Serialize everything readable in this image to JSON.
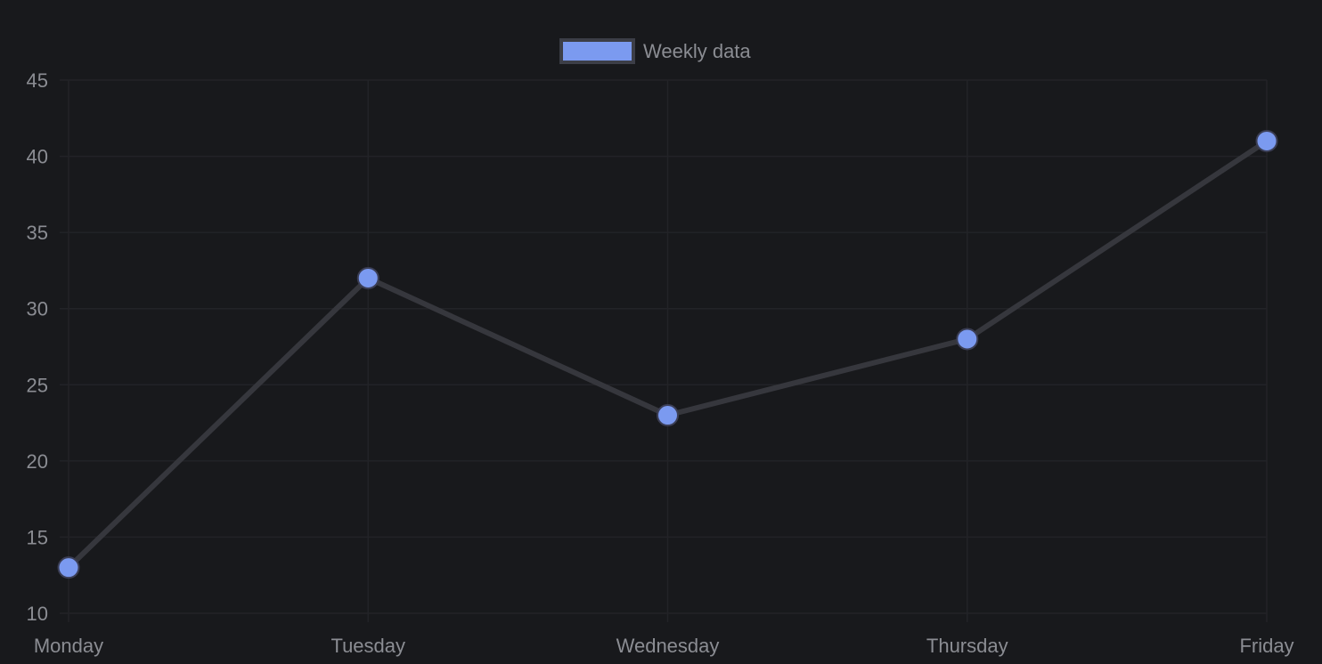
{
  "chart_data": {
    "type": "line",
    "categories": [
      "Monday",
      "Tuesday",
      "Wednesday",
      "Thursday",
      "Friday"
    ],
    "series": [
      {
        "name": "Weekly data",
        "values": [
          13,
          32,
          23,
          28,
          41
        ]
      }
    ],
    "ylim": [
      10,
      45
    ],
    "y_ticks": [
      "45",
      "40",
      "35",
      "30",
      "25",
      "20",
      "15",
      "10"
    ],
    "grid": true,
    "legend_position": "top-center",
    "colors": {
      "background": "#18191c",
      "grid": "#222327",
      "line": "#36373d",
      "point_fill": "#7b9af0",
      "point_stroke": "#3b3e55",
      "legend_fill": "#7b9af0",
      "legend_stroke": "#3c3e47",
      "text": "#8b8d93"
    }
  }
}
